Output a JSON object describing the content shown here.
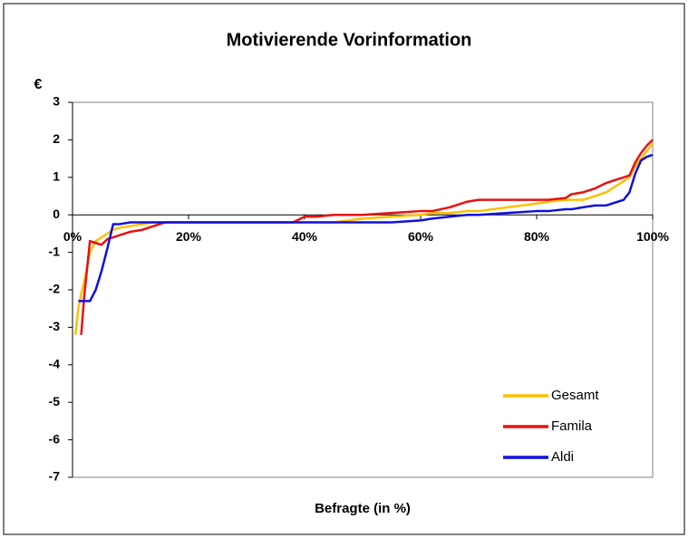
{
  "chart_data": {
    "type": "line",
    "title": "Motivierende Vorinformation",
    "ylabel": "€",
    "xlabel": "Befragte (in %)",
    "x": [
      0.5,
      1,
      1.5,
      2,
      3,
      4,
      5,
      6,
      7,
      8,
      10,
      12,
      14,
      16,
      18,
      20,
      30,
      38,
      40,
      42,
      45,
      50,
      55,
      60,
      62,
      65,
      68,
      70,
      75,
      80,
      82,
      85,
      86,
      88,
      90,
      92,
      94,
      95,
      96,
      97,
      98,
      99,
      100
    ],
    "series": [
      {
        "name": "Gesamt",
        "color": "#ffc000",
        "values": [
          -3.2,
          -2.5,
          -2.1,
          -1.8,
          -1.0,
          -0.7,
          -0.6,
          -0.5,
          -0.4,
          -0.35,
          -0.3,
          -0.25,
          -0.2,
          -0.2,
          -0.2,
          -0.2,
          -0.2,
          -0.2,
          -0.2,
          -0.2,
          -0.2,
          -0.1,
          -0.05,
          0,
          0.05,
          0.05,
          0.1,
          0.1,
          0.2,
          0.3,
          0.35,
          0.4,
          0.4,
          0.4,
          0.5,
          0.6,
          0.8,
          0.9,
          1.0,
          1.3,
          1.5,
          1.7,
          1.9
        ]
      },
      {
        "name": "Famila",
        "color": "#e81010",
        "values": [
          null,
          null,
          -3.2,
          -2.2,
          -0.7,
          -0.75,
          -0.8,
          -0.65,
          -0.6,
          -0.55,
          -0.45,
          -0.4,
          -0.3,
          -0.2,
          -0.2,
          -0.2,
          -0.2,
          -0.2,
          -0.05,
          -0.05,
          0,
          0,
          0.05,
          0.1,
          0.1,
          0.2,
          0.35,
          0.4,
          0.4,
          0.4,
          0.4,
          0.45,
          0.55,
          0.6,
          0.7,
          0.85,
          0.95,
          1.0,
          1.05,
          1.4,
          1.65,
          1.85,
          2.0
        ]
      },
      {
        "name": "Aldi",
        "color": "#1010e0",
        "values": [
          null,
          -2.3,
          -2.3,
          -2.3,
          -2.3,
          -2.0,
          -1.5,
          -0.9,
          -0.25,
          -0.25,
          -0.2,
          -0.2,
          -0.2,
          -0.2,
          -0.2,
          -0.2,
          -0.2,
          -0.2,
          -0.2,
          -0.2,
          -0.2,
          -0.2,
          -0.2,
          -0.15,
          -0.1,
          -0.05,
          0,
          0,
          0.05,
          0.1,
          0.1,
          0.15,
          0.15,
          0.2,
          0.25,
          0.25,
          0.35,
          0.4,
          0.6,
          1.1,
          1.45,
          1.55,
          1.6
        ]
      }
    ],
    "xlim": [
      0,
      100
    ],
    "xticks": [
      {
        "value": 0,
        "label": "0%"
      },
      {
        "value": 20,
        "label": "20%"
      },
      {
        "value": 40,
        "label": "40%"
      },
      {
        "value": 60,
        "label": "60%"
      },
      {
        "value": 80,
        "label": "80%"
      },
      {
        "value": 100,
        "label": "100%"
      }
    ],
    "ylim": [
      -7,
      3
    ],
    "yticks": [
      -7,
      -6,
      -5,
      -4,
      -3,
      -2,
      -1,
      0,
      1,
      2,
      3
    ],
    "legend": "lower right"
  }
}
